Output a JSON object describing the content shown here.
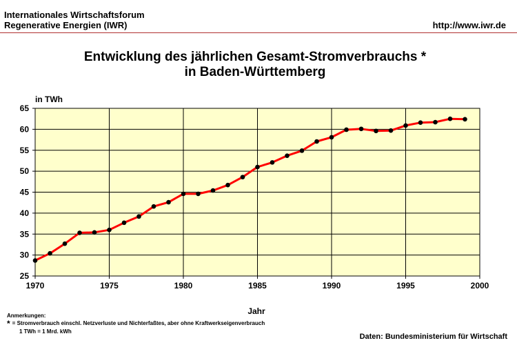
{
  "header": {
    "org_line1": "Internationales Wirtschaftsforum",
    "org_line2": "Regenerative Energien (IWR)",
    "url": "http://www.iwr.de"
  },
  "notes": {
    "heading": "Anmerkungen:",
    "star": "*",
    "line1": "= Stromverbrauch einschl. Netzverluste und Nichterfaßtes, aber ohne Kraftwerkseigenverbrauch",
    "line2": "1 TWh = 1 Mrd. kWh"
  },
  "source": "Daten: Bundesministerium für Wirtschaft",
  "chart_data": {
    "type": "line",
    "title_line1": "Entwicklung des jährlichen Gesamt-Stromverbrauchs *",
    "title_line2": "in Baden-Württemberg",
    "ylabel": "in TWh",
    "xlabel": "Jahr",
    "xlim": [
      1970,
      2000
    ],
    "ylim": [
      25,
      65
    ],
    "x_ticks": [
      1970,
      1975,
      1980,
      1985,
      1990,
      1995,
      2000
    ],
    "y_ticks": [
      25,
      30,
      35,
      40,
      45,
      50,
      55,
      60,
      65
    ],
    "grid": true,
    "line_color": "#ff0000",
    "marker_color": "#000000",
    "plot_background": "#ffffcc",
    "series": [
      {
        "x": [
          1970,
          1971,
          1972,
          1973,
          1974,
          1975,
          1976,
          1977,
          1978,
          1979,
          1980,
          1981,
          1982,
          1983,
          1984,
          1985,
          1986,
          1987,
          1988,
          1989,
          1990,
          1991,
          1992,
          1993,
          1994,
          1995,
          1996,
          1997,
          1998,
          1999
        ],
        "values": [
          28.7,
          30.4,
          32.7,
          35.3,
          35.4,
          36.0,
          37.7,
          39.2,
          41.6,
          42.6,
          44.6,
          44.6,
          45.4,
          46.7,
          48.6,
          51.0,
          52.1,
          53.7,
          54.9,
          57.1,
          58.1,
          59.9,
          60.1,
          59.6,
          59.7,
          60.9,
          61.6,
          61.7,
          62.5,
          62.4
        ]
      }
    ]
  }
}
